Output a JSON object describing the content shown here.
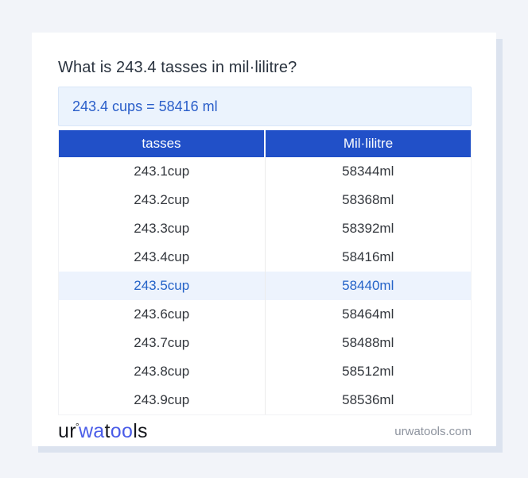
{
  "header": {
    "question": "What is 243.4 tasses in mil·lilitre?",
    "result": "243.4 cups = 58416 ml"
  },
  "table": {
    "columns": [
      "tasses",
      "Mil·lilitre"
    ],
    "rows": [
      {
        "cup": "243.1cup",
        "ml": "58344ml"
      },
      {
        "cup": "243.2cup",
        "ml": "58368ml"
      },
      {
        "cup": "243.3cup",
        "ml": "58392ml"
      },
      {
        "cup": "243.4cup",
        "ml": "58416ml"
      },
      {
        "cup": "243.5cup",
        "ml": "58440ml"
      },
      {
        "cup": "243.6cup",
        "ml": "58464ml"
      },
      {
        "cup": "243.7cup",
        "ml": "58488ml"
      },
      {
        "cup": "243.8cup",
        "ml": "58512ml"
      },
      {
        "cup": "243.9cup",
        "ml": "58536ml"
      }
    ],
    "highlighted_row": "243.5cup"
  },
  "footer": {
    "logo": {
      "part1": "ur",
      "degree": "°",
      "part2": "wa",
      "part3": "t",
      "part4": "oo",
      "part5": "ls"
    },
    "site": "urwatools.com"
  },
  "colors": {
    "page_background": "#f2f4f9",
    "header_blue": "#2150c8",
    "result_box_background": "#ebf3fd",
    "result_text_blue": "#2a5ec9",
    "highlight_row_background": "#edf3fd",
    "highlight_text_blue": "#2563c8",
    "logo_blue": "#4a5ce8",
    "card_shadow": "#dce3ef"
  }
}
